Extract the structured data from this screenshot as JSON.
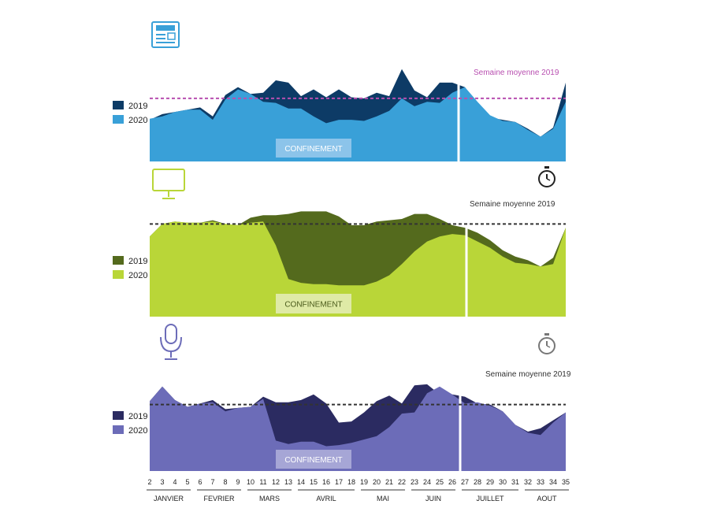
{
  "weeks": [
    "2",
    "3",
    "4",
    "5",
    "6",
    "7",
    "8",
    "9",
    "10",
    "11",
    "12",
    "13",
    "14",
    "15",
    "16",
    "17",
    "18",
    "19",
    "20",
    "21",
    "22",
    "23",
    "24",
    "25",
    "26",
    "27",
    "28",
    "29",
    "30",
    "31",
    "32",
    "33",
    "34",
    "35"
  ],
  "months": [
    {
      "label": "JANVIER",
      "from": "2",
      "to": "5"
    },
    {
      "label": "FEVRIER",
      "from": "6",
      "to": "9"
    },
    {
      "label": "MARS",
      "from": "10",
      "to": "13"
    },
    {
      "label": "AVRIL",
      "from": "14",
      "to": "18"
    },
    {
      "label": "MAI",
      "from": "19",
      "to": "22"
    },
    {
      "label": "JUIN",
      "from": "23",
      "to": "26"
    },
    {
      "label": "JUILLET",
      "from": "27",
      "to": "31"
    },
    {
      "label": "AOUT",
      "from": "32",
      "to": "35"
    }
  ],
  "chart_data": [
    {
      "type": "area",
      "medium": "presse",
      "icon": "newspaper-icon",
      "x": [
        2,
        3,
        4,
        5,
        6,
        7,
        8,
        9,
        10,
        11,
        12,
        13,
        14,
        15,
        16,
        17,
        18,
        19,
        20,
        21,
        22,
        23,
        24,
        25,
        26,
        27,
        28,
        29,
        30,
        31,
        32,
        33,
        34,
        35
      ],
      "series": [
        {
          "name": "2019",
          "color": "#0d3b66",
          "values": [
            37,
            42,
            44,
            46,
            48,
            40,
            59,
            66,
            60,
            61,
            72,
            70,
            58,
            64,
            57,
            64,
            57,
            56,
            61,
            58,
            82,
            63,
            57,
            70,
            70,
            66,
            50,
            39,
            37,
            35,
            29,
            22,
            30,
            70
          ]
        },
        {
          "name": "2020",
          "color": "#39a0d8",
          "values": [
            38,
            40,
            44,
            46,
            46,
            37,
            55,
            64,
            60,
            53,
            52,
            47,
            47,
            40,
            34,
            37,
            37,
            36,
            40,
            45,
            56,
            49,
            53,
            52,
            61,
            66,
            53,
            41,
            36,
            35,
            28,
            22,
            29,
            53
          ]
        }
      ],
      "legend": [
        "2019",
        "2020"
      ],
      "reference_line": {
        "label": "Semaine moyenne 2019",
        "value": 56,
        "color": "#b84fb0"
      },
      "annotation": "CONFINEMENT",
      "ylim": [
        0,
        100
      ]
    },
    {
      "type": "area",
      "medium": "tv",
      "icon": "monitor-icon",
      "timer_icon": "stopwatch-icon",
      "x": [
        2,
        3,
        4,
        5,
        6,
        7,
        8,
        9,
        10,
        11,
        12,
        13,
        14,
        15,
        16,
        17,
        18,
        19,
        20,
        21,
        22,
        23,
        24,
        25,
        26,
        27,
        28,
        29,
        30,
        31,
        32,
        33,
        34,
        35
      ],
      "series": [
        {
          "name": "2019",
          "color": "#546a1d",
          "values": [
            64,
            74,
            76,
            75,
            75,
            77,
            74,
            73,
            79,
            81,
            81,
            82,
            84,
            84,
            84,
            80,
            73,
            73,
            76,
            77,
            78,
            82,
            82,
            78,
            73,
            71,
            67,
            61,
            53,
            48,
            45,
            40,
            47,
            71
          ]
        },
        {
          "name": "2020",
          "color": "#b9d638",
          "values": [
            64,
            74,
            76,
            75,
            75,
            76,
            74,
            73,
            75,
            76,
            57,
            30,
            27,
            26,
            26,
            25,
            25,
            25,
            28,
            33,
            42,
            52,
            60,
            64,
            66,
            65,
            60,
            55,
            48,
            43,
            42,
            40,
            42,
            71
          ]
        }
      ],
      "legend": [
        "2019",
        "2020"
      ],
      "reference_line": {
        "label": "Semaine moyenne 2019",
        "value": 74,
        "color": "#333333"
      },
      "annotation": "CONFINEMENT",
      "ylim": [
        0,
        100
      ]
    },
    {
      "type": "area",
      "medium": "radio",
      "icon": "microphone-icon",
      "timer_icon": "stopwatch-icon",
      "x": [
        2,
        3,
        4,
        5,
        6,
        7,
        8,
        9,
        10,
        11,
        12,
        13,
        14,
        15,
        16,
        17,
        18,
        19,
        20,
        21,
        22,
        23,
        24,
        25,
        26,
        27,
        28,
        29,
        30,
        31,
        32,
        33,
        34,
        35
      ],
      "series": [
        {
          "name": "2019",
          "color": "#2b2b61",
          "values": [
            62,
            75,
            63,
            57,
            60,
            63,
            55,
            56,
            57,
            66,
            61,
            61,
            63,
            68,
            60,
            43,
            44,
            52,
            62,
            67,
            60,
            76,
            77,
            68,
            68,
            66,
            60,
            59,
            53,
            41,
            35,
            38,
            45,
            52
          ]
        },
        {
          "name": "2020",
          "color": "#6c6cb8",
          "values": [
            62,
            75,
            63,
            57,
            60,
            61,
            53,
            56,
            57,
            64,
            27,
            24,
            26,
            26,
            22,
            23,
            25,
            28,
            31,
            39,
            51,
            52,
            69,
            75,
            68,
            60,
            61,
            58,
            53,
            41,
            34,
            32,
            43,
            52
          ]
        }
      ],
      "legend": [
        "2019",
        "2020"
      ],
      "reference_line": {
        "label": "Semaine moyenne 2019",
        "value": 59,
        "color": "#333333"
      },
      "annotation": "CONFINEMENT",
      "ylim": [
        0,
        100
      ]
    }
  ]
}
